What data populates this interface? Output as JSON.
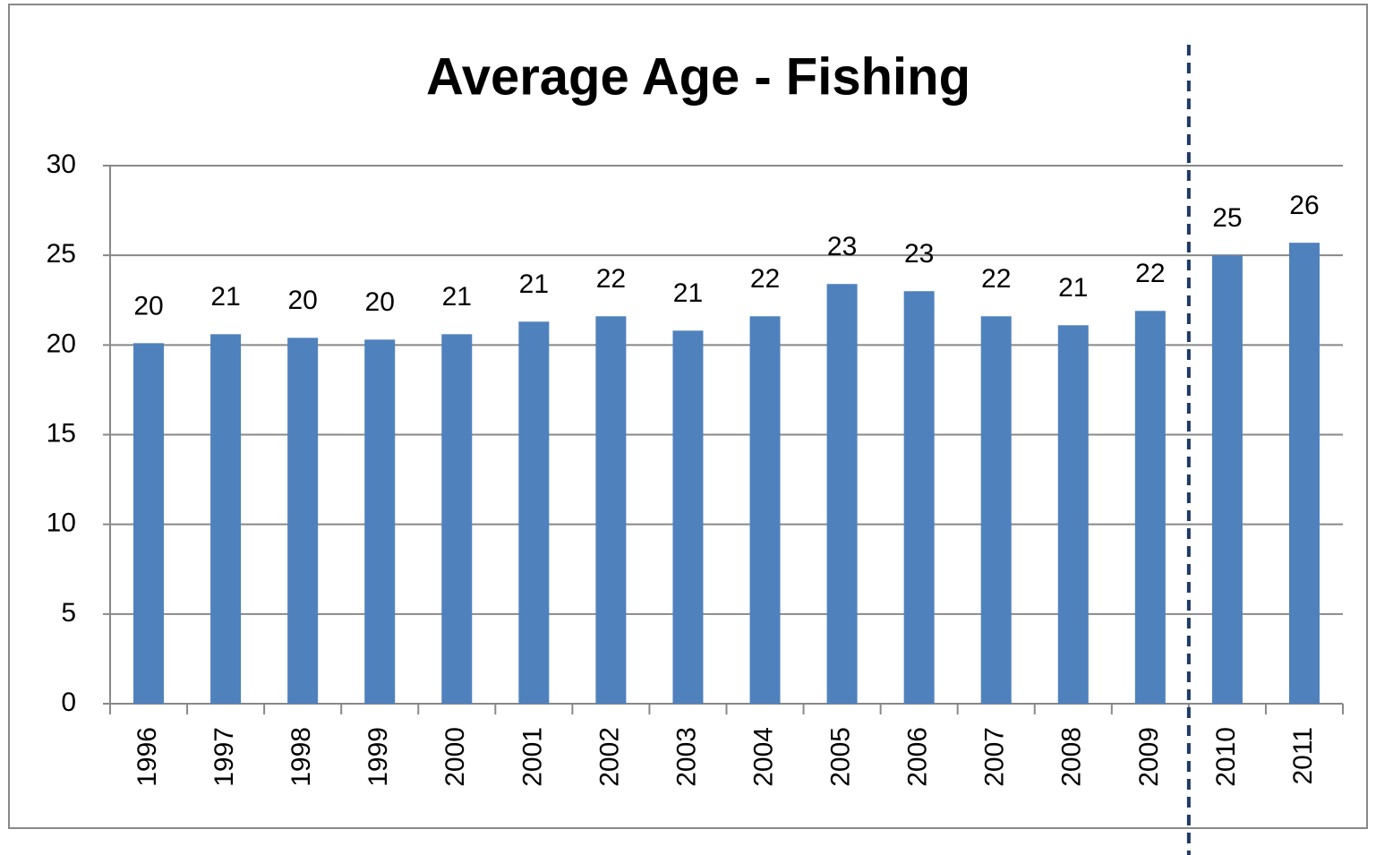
{
  "chart_data": {
    "type": "bar",
    "title": "Average Age - Fishing",
    "categories": [
      "1996",
      "1997",
      "1998",
      "1999",
      "2000",
      "2001",
      "2002",
      "2003",
      "2004",
      "2005",
      "2006",
      "2007",
      "2008",
      "2009",
      "2010",
      "2011"
    ],
    "values": [
      20.1,
      20.6,
      20.4,
      20.3,
      20.6,
      21.3,
      21.6,
      20.8,
      21.6,
      23.4,
      23.0,
      21.6,
      21.1,
      21.9,
      25.0,
      25.7
    ],
    "value_labels": [
      "20",
      "21",
      "20",
      "20",
      "21",
      "21",
      "22",
      "21",
      "22",
      "23",
      "23",
      "22",
      "21",
      "22",
      "25",
      "26"
    ],
    "color": "#4f81bd",
    "ylim": [
      0,
      30
    ],
    "yticks": [
      0,
      5,
      10,
      15,
      20,
      25,
      30
    ],
    "grid": true
  }
}
